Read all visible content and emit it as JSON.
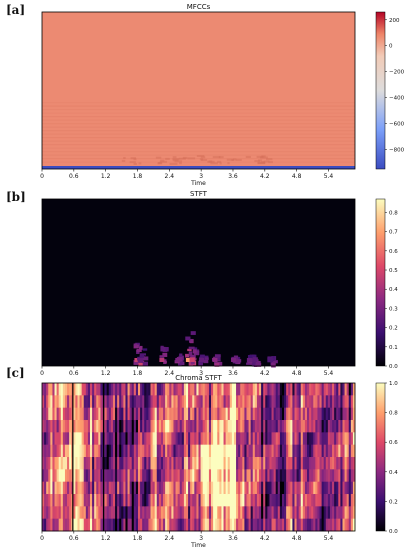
{
  "panel_labels": [
    "[a]",
    "[b]",
    "[c]"
  ],
  "colors": {
    "mfcc_body": "#ec8a72",
    "mfcc_low_band": "#3b4cc0",
    "stft_bg": "#03020d",
    "coolwarm": [
      "#3b4cc0",
      "#7b9ff9",
      "#c0d4f5",
      "#f2cbb7",
      "#ee8468",
      "#b40426"
    ],
    "magma": [
      "#000004",
      "#3b0f70",
      "#8c2981",
      "#de4968",
      "#fe9f6d",
      "#fcfdbf"
    ]
  },
  "chart_data": [
    {
      "type": "heatmap",
      "title": "MFCCs",
      "xlabel": "Time",
      "ylabel": "",
      "xlim": [
        0,
        5.9
      ],
      "x_ticks": [
        "0",
        "0.6",
        "1.2",
        "1.8",
        "2.4",
        "3",
        "3.6",
        "4.2",
        "4.8",
        "5.4"
      ],
      "x_tick_values": [
        0,
        0.6,
        1.2,
        1.8,
        2.4,
        3.0,
        3.6,
        4.2,
        4.8,
        5.4
      ],
      "colormap": "coolwarm",
      "colorbar_range": [
        -950,
        260
      ],
      "colorbar_ticks": [
        "200",
        "0",
        "−200",
        "−400",
        "−600",
        "−800"
      ],
      "colorbar_tick_values": [
        200,
        0,
        -200,
        -400,
        -600,
        -800
      ],
      "grid": false
    },
    {
      "type": "heatmap",
      "title": "STFT",
      "xlabel": "",
      "ylabel": "",
      "xlim": [
        0,
        5.9
      ],
      "x_ticks": [
        "0",
        "0.6",
        "1.2",
        "1.8",
        "2.4",
        "3",
        "3.6",
        "4.2",
        "4.8",
        "5.4"
      ],
      "x_tick_values": [
        0,
        0.6,
        1.2,
        1.8,
        2.4,
        3.0,
        3.6,
        4.2,
        4.8,
        5.4
      ],
      "colormap": "magma",
      "colorbar_range": [
        0,
        0.87
      ],
      "colorbar_ticks": [
        "0.0",
        "0.1",
        "0.2",
        "0.3",
        "0.4",
        "0.5",
        "0.6",
        "0.7",
        "0.8"
      ],
      "colorbar_tick_values": [
        0,
        0.1,
        0.2,
        0.3,
        0.4,
        0.5,
        0.6,
        0.7,
        0.8
      ],
      "grid": false
    },
    {
      "type": "heatmap",
      "title": "Chroma STFT",
      "xlabel": "Time",
      "ylabel": "",
      "xlim": [
        0,
        5.9
      ],
      "x_ticks": [
        "0",
        "0.6",
        "1.2",
        "1.8",
        "2.4",
        "3",
        "3.6",
        "4.2",
        "4.8",
        "5.4"
      ],
      "x_tick_values": [
        0,
        0.6,
        1.2,
        1.8,
        2.4,
        3.0,
        3.6,
        4.2,
        4.8,
        5.4
      ],
      "colormap": "magma",
      "colorbar_range": [
        0,
        1
      ],
      "colorbar_ticks": [
        "0.0",
        "0.2",
        "0.4",
        "0.6",
        "0.8",
        "1.0"
      ],
      "colorbar_tick_values": [
        0,
        0.2,
        0.4,
        0.6,
        0.8,
        1.0
      ],
      "grid": false
    }
  ]
}
